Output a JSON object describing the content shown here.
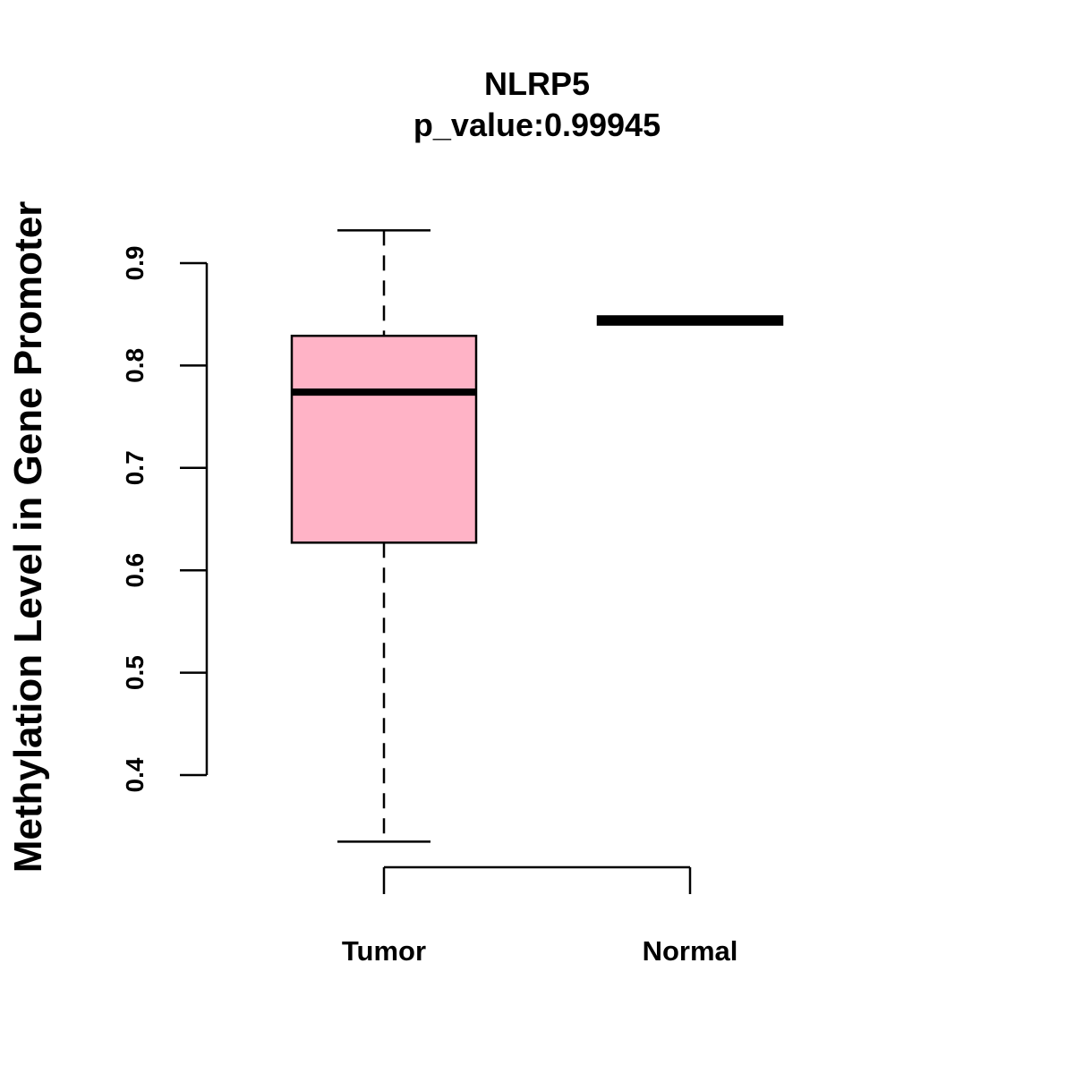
{
  "chart_data": {
    "type": "boxplot",
    "title": "NLRP5",
    "subtitle": "p_value:0.99945",
    "ylabel": "Methylation Level in Gene Promoter",
    "xlabel": "",
    "yticks": [
      0.4,
      0.5,
      0.6,
      0.7,
      0.8,
      0.9
    ],
    "ytick_labels": [
      "0.4",
      "0.5",
      "0.6",
      "0.7",
      "0.8",
      "0.9"
    ],
    "categories": [
      "Tumor",
      "Normal"
    ],
    "boxes": [
      {
        "name": "Tumor",
        "whisker_low": 0.335,
        "q1": 0.627,
        "median": 0.774,
        "q3": 0.829,
        "whisker_high": 0.932,
        "fill": "#ffb3c6"
      },
      {
        "name": "Normal",
        "whisker_low": 0.84,
        "q1": 0.84,
        "median": 0.844,
        "q3": 0.848,
        "whisker_high": 0.848,
        "fill": "#ffb3c6"
      }
    ],
    "colors": {
      "box_fill": "#ffb3c6",
      "line": "#000000",
      "background": "#ffffff"
    }
  }
}
